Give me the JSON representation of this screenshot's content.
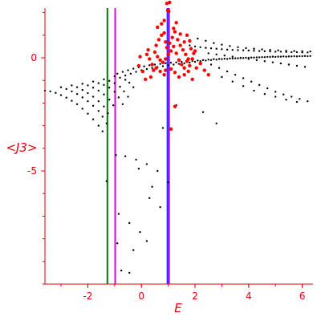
{
  "chart_data": {
    "type": "scatter",
    "xlabel": "E",
    "ylabel": "<J3>",
    "xlim": [
      -3.6,
      6.4
    ],
    "ylim": [
      -10.0,
      2.2
    ],
    "x_ticks": [
      {
        "value": -2,
        "label": "-2"
      },
      {
        "value": 0,
        "label": "0"
      },
      {
        "value": 2,
        "label": "2"
      },
      {
        "value": 4,
        "label": "4"
      },
      {
        "value": 6,
        "label": "6"
      }
    ],
    "y_ticks": [
      {
        "value": 0,
        "label": "0"
      },
      {
        "value": -5,
        "label": "-5"
      }
    ],
    "grid": false,
    "legend": "none",
    "colors": {
      "axis": "#e8000b",
      "black_series": "#000000",
      "red_series": "#ff0000",
      "green_line": "#007a00",
      "magenta_line": "#e000e0",
      "blue_line": "#2233ff",
      "purple_line": "#a000ff"
    },
    "vertical_lines": [
      {
        "x": -1.27,
        "color": "#007a00"
      },
      {
        "x": -0.98,
        "color": "#e000e0"
      },
      {
        "x": 0.97,
        "color": "#2233ff"
      },
      {
        "x": 1.03,
        "color": "#a000ff"
      }
    ],
    "series": [
      {
        "color": "#000000",
        "marker_size": 1.2,
        "points": [
          [
            -3.6,
            -1.45
          ],
          [
            -3.4,
            -1.48
          ],
          [
            -3.2,
            -1.55
          ],
          [
            -3.0,
            -1.65
          ],
          [
            -2.8,
            -1.76
          ],
          [
            -2.6,
            -1.9
          ],
          [
            -2.4,
            -2.05
          ],
          [
            -2.2,
            -2.25
          ],
          [
            -2.0,
            -2.47
          ],
          [
            -1.8,
            -2.72
          ],
          [
            -1.6,
            -3.0
          ],
          [
            -1.45,
            -3.25
          ],
          [
            -3.0,
            -1.3
          ],
          [
            -2.8,
            -1.38
          ],
          [
            -2.6,
            -1.48
          ],
          [
            -2.4,
            -1.6
          ],
          [
            -2.2,
            -1.75
          ],
          [
            -2.0,
            -1.92
          ],
          [
            -1.8,
            -2.12
          ],
          [
            -1.6,
            -2.35
          ],
          [
            -1.45,
            -2.6
          ],
          [
            -1.3,
            -2.9
          ],
          [
            -2.6,
            -1.22
          ],
          [
            -2.4,
            -1.3
          ],
          [
            -2.2,
            -1.42
          ],
          [
            -2.0,
            -1.56
          ],
          [
            -1.8,
            -1.72
          ],
          [
            -1.6,
            -1.92
          ],
          [
            -1.4,
            -2.15
          ],
          [
            -1.25,
            -2.45
          ],
          [
            -2.2,
            -1.15
          ],
          [
            -2.0,
            -1.22
          ],
          [
            -1.8,
            -1.32
          ],
          [
            -1.6,
            -1.45
          ],
          [
            -1.4,
            -1.62
          ],
          [
            -1.2,
            -1.85
          ],
          [
            -1.05,
            -2.1
          ],
          [
            -1.8,
            -1.05
          ],
          [
            -1.6,
            -1.12
          ],
          [
            -1.4,
            -1.2
          ],
          [
            -1.2,
            -1.32
          ],
          [
            -1.0,
            -1.5
          ],
          [
            -0.85,
            -1.75
          ],
          [
            -0.7,
            -2.05
          ],
          [
            -1.4,
            -0.95
          ],
          [
            -1.2,
            -1.02
          ],
          [
            -1.0,
            -1.12
          ],
          [
            -0.8,
            -1.28
          ],
          [
            -0.65,
            -1.48
          ],
          [
            -0.5,
            -1.72
          ],
          [
            -1.0,
            -0.82
          ],
          [
            -0.8,
            -0.88
          ],
          [
            -0.6,
            -0.97
          ],
          [
            -0.45,
            -1.1
          ],
          [
            -0.3,
            -1.3
          ],
          [
            -0.9,
            -0.7
          ],
          [
            -0.7,
            -0.62
          ],
          [
            -0.5,
            -0.55
          ],
          [
            -0.3,
            -0.48
          ],
          [
            -0.1,
            -0.42
          ],
          [
            0.1,
            -0.38
          ],
          [
            0.3,
            -0.33
          ],
          [
            0.5,
            -0.3
          ],
          [
            0.7,
            -0.27
          ],
          [
            0.9,
            -0.24
          ],
          [
            1.1,
            -0.22
          ],
          [
            1.3,
            -0.2
          ],
          [
            1.5,
            -0.18
          ],
          [
            1.7,
            -0.16
          ],
          [
            1.9,
            -0.14
          ],
          [
            2.1,
            -0.12
          ],
          [
            2.3,
            -0.1
          ],
          [
            2.5,
            -0.08
          ],
          [
            2.7,
            -0.06
          ],
          [
            2.9,
            -0.05
          ],
          [
            3.1,
            -0.04
          ],
          [
            3.3,
            -0.03
          ],
          [
            3.5,
            -0.02
          ],
          [
            3.7,
            -0.01
          ],
          [
            3.9,
            0.0
          ],
          [
            4.1,
            0.01
          ],
          [
            4.3,
            0.02
          ],
          [
            4.5,
            0.03
          ],
          [
            4.7,
            0.04
          ],
          [
            4.9,
            0.05
          ],
          [
            5.1,
            0.05
          ],
          [
            5.3,
            0.06
          ],
          [
            5.5,
            0.06
          ],
          [
            5.7,
            0.07
          ],
          [
            5.9,
            0.07
          ],
          [
            6.1,
            0.08
          ],
          [
            6.3,
            0.08
          ],
          [
            -0.6,
            -0.78
          ],
          [
            -0.4,
            -0.7
          ],
          [
            -0.2,
            -0.62
          ],
          [
            0.0,
            -0.55
          ],
          [
            0.2,
            -0.5
          ],
          [
            0.4,
            -0.45
          ],
          [
            0.6,
            -0.41
          ],
          [
            0.8,
            -0.37
          ],
          [
            1.0,
            -0.33
          ],
          [
            1.2,
            -0.3
          ],
          [
            1.4,
            -0.27
          ],
          [
            1.6,
            -0.24
          ],
          [
            1.8,
            -0.21
          ],
          [
            2.0,
            -0.18
          ],
          [
            2.2,
            -0.15
          ],
          [
            2.4,
            -0.12
          ],
          [
            2.6,
            -0.1
          ],
          [
            2.8,
            -0.08
          ],
          [
            3.0,
            -0.06
          ],
          [
            3.2,
            -0.05
          ],
          [
            3.4,
            -0.03
          ],
          [
            3.6,
            -0.02
          ],
          [
            3.8,
            -0.01
          ],
          [
            4.0,
            0.0
          ],
          [
            4.2,
            0.01
          ],
          [
            4.4,
            0.02
          ],
          [
            4.6,
            0.03
          ],
          [
            4.8,
            0.04
          ],
          [
            5.0,
            0.04
          ],
          [
            5.2,
            0.05
          ],
          [
            5.4,
            0.05
          ],
          [
            5.6,
            0.06
          ],
          [
            5.8,
            0.06
          ],
          [
            6.0,
            0.07
          ],
          [
            6.2,
            0.07
          ],
          [
            1.8,
            0.55
          ],
          [
            2.0,
            0.5
          ],
          [
            2.2,
            0.47
          ],
          [
            2.4,
            0.44
          ],
          [
            2.6,
            0.42
          ],
          [
            2.8,
            0.4
          ],
          [
            3.0,
            0.38
          ],
          [
            3.2,
            0.36
          ],
          [
            3.4,
            0.35
          ],
          [
            3.6,
            0.34
          ],
          [
            3.8,
            0.33
          ],
          [
            4.0,
            0.32
          ],
          [
            4.2,
            0.31
          ],
          [
            4.4,
            0.3
          ],
          [
            4.6,
            0.29
          ],
          [
            4.8,
            0.28
          ],
          [
            5.0,
            0.27
          ],
          [
            5.2,
            0.27
          ],
          [
            5.4,
            0.26
          ],
          [
            5.6,
            0.25
          ],
          [
            5.8,
            0.25
          ],
          [
            6.0,
            0.24
          ],
          [
            6.2,
            0.24
          ],
          [
            2.1,
            0.85
          ],
          [
            2.4,
            0.75
          ],
          [
            2.7,
            0.65
          ],
          [
            3.0,
            0.58
          ],
          [
            3.3,
            0.52
          ],
          [
            3.6,
            0.47
          ],
          [
            3.9,
            0.43
          ],
          [
            4.2,
            0.4
          ],
          [
            4.5,
            0.37
          ],
          [
            4.8,
            0.35
          ],
          [
            5.1,
            0.33
          ],
          [
            5.4,
            0.31
          ],
          [
            5.7,
            0.3
          ],
          [
            6.0,
            0.29
          ],
          [
            6.3,
            0.28
          ],
          [
            2.5,
            0.2
          ],
          [
            2.8,
            0.15
          ],
          [
            3.1,
            0.1
          ],
          [
            3.4,
            0.05
          ],
          [
            3.7,
            0.0
          ],
          [
            4.0,
            -0.05
          ],
          [
            4.3,
            -0.1
          ],
          [
            4.6,
            -0.15
          ],
          [
            4.9,
            -0.2
          ],
          [
            5.2,
            -0.25
          ],
          [
            5.5,
            -0.3
          ],
          [
            5.8,
            -0.35
          ],
          [
            6.1,
            -0.4
          ],
          [
            2.6,
            -0.3
          ],
          [
            2.9,
            -0.45
          ],
          [
            3.2,
            -0.6
          ],
          [
            3.5,
            -0.75
          ],
          [
            3.8,
            -0.9
          ],
          [
            4.1,
            -1.05
          ],
          [
            4.4,
            -1.2
          ],
          [
            4.7,
            -1.35
          ],
          [
            5.0,
            -1.5
          ],
          [
            5.3,
            -1.62
          ],
          [
            5.6,
            -1.72
          ],
          [
            5.9,
            -1.82
          ],
          [
            6.2,
            -1.92
          ],
          [
            3.0,
            -0.85
          ],
          [
            3.4,
            -1.05
          ],
          [
            3.8,
            -1.25
          ],
          [
            4.2,
            -1.45
          ],
          [
            4.6,
            -1.6
          ],
          [
            5.0,
            -1.72
          ],
          [
            5.4,
            -1.85
          ],
          [
            5.8,
            -1.95
          ],
          [
            -0.95,
            -4.3
          ],
          [
            -0.6,
            -4.35
          ],
          [
            -0.2,
            -4.5
          ],
          [
            0.2,
            -4.7
          ],
          [
            0.6,
            -5.0
          ],
          [
            1.0,
            -5.5
          ],
          [
            -1.3,
            -5.45
          ],
          [
            -0.85,
            -6.9
          ],
          [
            -0.45,
            -7.3
          ],
          [
            -0.05,
            -7.7
          ],
          [
            0.3,
            -6.2
          ],
          [
            0.7,
            -6.6
          ],
          [
            -0.9,
            -8.2
          ],
          [
            -0.3,
            -8.5
          ],
          [
            0.2,
            -8.1
          ],
          [
            -0.75,
            -9.4
          ],
          [
            -0.45,
            -9.5
          ],
          [
            0.4,
            -5.7
          ],
          [
            0.8,
            -3.1
          ],
          [
            2.8,
            -2.9
          ],
          [
            -0.1,
            -4.9
          ],
          [
            1.3,
            -2.1
          ],
          [
            2.3,
            -2.4
          ]
        ]
      },
      {
        "color": "#ff0000",
        "marker_size": 2.2,
        "points": [
          [
            0.55,
            0.55
          ],
          [
            0.65,
            0.8
          ],
          [
            0.75,
            1.0
          ],
          [
            0.85,
            1.1
          ],
          [
            0.9,
            0.7
          ],
          [
            0.95,
            0.45
          ],
          [
            1.05,
            0.65
          ],
          [
            1.15,
            0.9
          ],
          [
            1.25,
            1.15
          ],
          [
            1.35,
            0.8
          ],
          [
            1.45,
            0.55
          ],
          [
            1.55,
            0.35
          ],
          [
            1.65,
            0.15
          ],
          [
            1.75,
            -0.05
          ],
          [
            1.85,
            0.4
          ],
          [
            1.95,
            0.2
          ],
          [
            0.5,
            0.25
          ],
          [
            0.6,
            0.05
          ],
          [
            0.7,
            -0.1
          ],
          [
            0.8,
            -0.2
          ],
          [
            0.9,
            -0.05
          ],
          [
            1.0,
            0.15
          ],
          [
            1.1,
            0.3
          ],
          [
            1.2,
            0.5
          ],
          [
            1.3,
            0.2
          ],
          [
            1.4,
            -0.1
          ],
          [
            1.5,
            -0.3
          ],
          [
            1.6,
            -0.45
          ],
          [
            1.7,
            -0.15
          ],
          [
            1.8,
            -0.35
          ],
          [
            1.9,
            -0.05
          ],
          [
            2.0,
            0.3
          ],
          [
            0.2,
            0.15
          ],
          [
            0.3,
            -0.05
          ],
          [
            0.4,
            -0.3
          ],
          [
            0.45,
            -0.55
          ],
          [
            0.35,
            -0.85
          ],
          [
            0.15,
            -0.95
          ],
          [
            0.05,
            -0.6
          ],
          [
            -0.05,
            0.05
          ],
          [
            -0.1,
            -0.35
          ],
          [
            0.25,
            0.35
          ],
          [
            0.55,
            -0.45
          ],
          [
            0.7,
            -0.6
          ],
          [
            0.85,
            -0.75
          ],
          [
            1.1,
            -0.5
          ],
          [
            1.25,
            -0.65
          ],
          [
            1.4,
            -0.85
          ],
          [
            1.6,
            -0.75
          ],
          [
            1.75,
            -0.6
          ],
          [
            2.05,
            -0.45
          ],
          [
            2.2,
            -0.25
          ],
          [
            2.35,
            -0.55
          ],
          [
            2.5,
            -0.75
          ],
          [
            1.9,
            -0.95
          ],
          [
            0.6,
            1.35
          ],
          [
            0.75,
            1.5
          ],
          [
            0.85,
            1.65
          ],
          [
            1.2,
            1.3
          ],
          [
            1.3,
            1.55
          ],
          [
            1.45,
            1.05
          ],
          [
            1.6,
            0.7
          ],
          [
            1.7,
            1.0
          ],
          [
            1.8,
            0.75
          ],
          [
            0.95,
            2.4
          ],
          [
            1.05,
            2.45
          ],
          [
            0.98,
            2.1
          ],
          [
            1.02,
            2.05
          ],
          [
            1.25,
            -2.15
          ],
          [
            1.1,
            -3.15
          ],
          [
            0.9,
            -0.55
          ]
        ]
      }
    ]
  }
}
